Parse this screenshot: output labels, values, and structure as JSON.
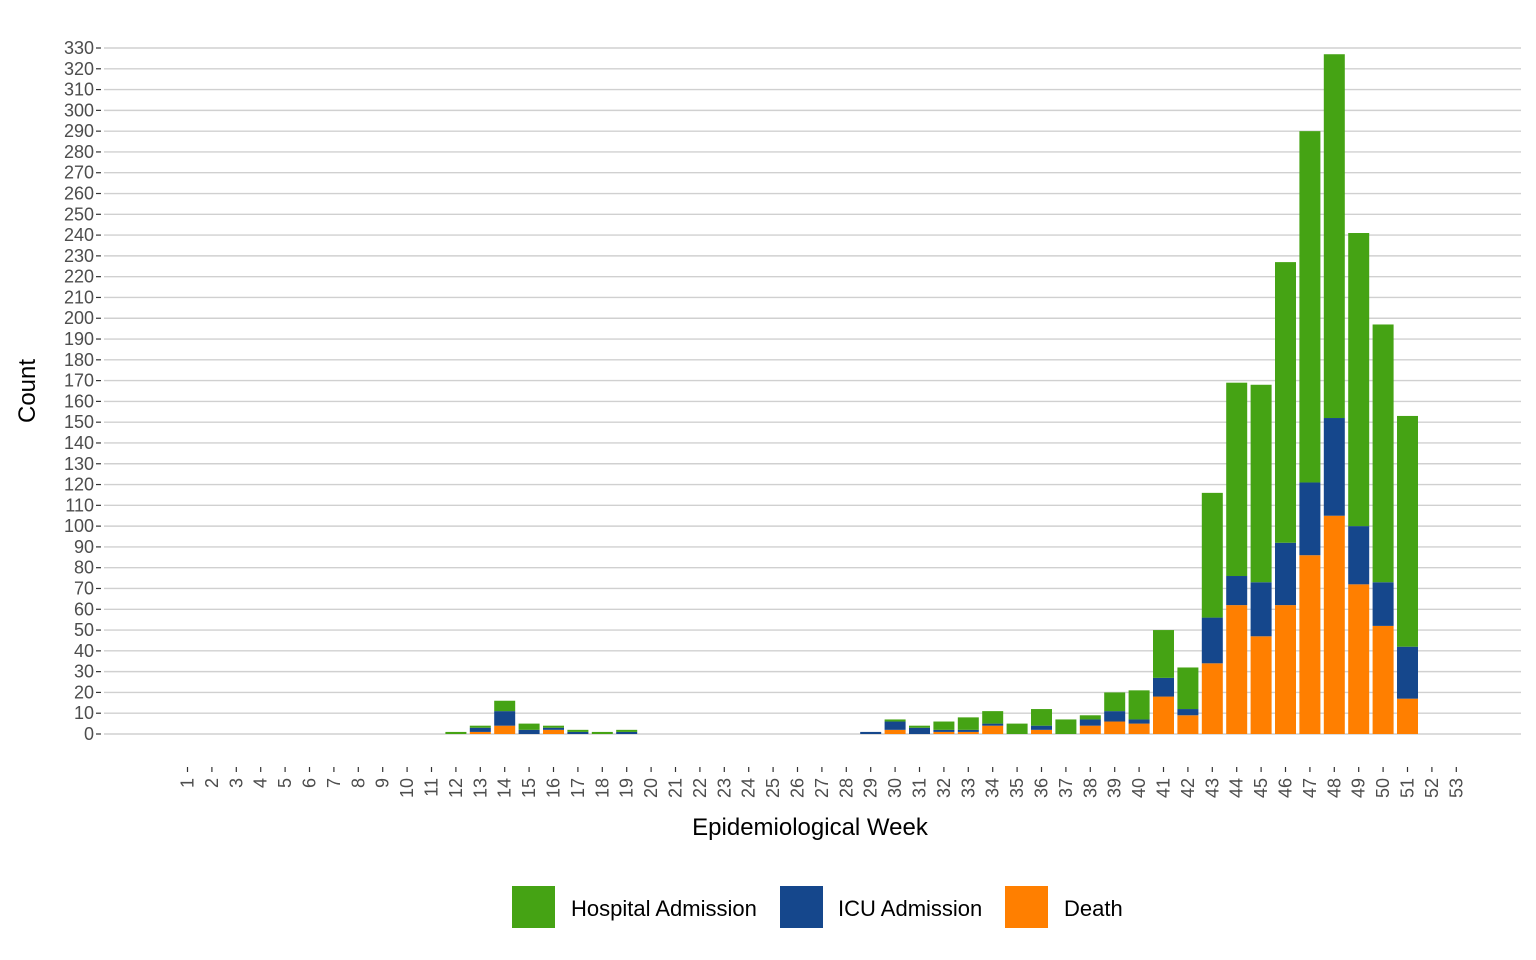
{
  "chart_data": {
    "type": "bar",
    "stacked": true,
    "xlabel": "Epidemiological Week",
    "ylabel": "Count",
    "ylim": [
      0,
      330
    ],
    "y_tick_step": 10,
    "grid": "horizontal",
    "legend_position": "bottom",
    "categories": [
      "1",
      "2",
      "3",
      "4",
      "5",
      "6",
      "7",
      "8",
      "9",
      "10",
      "11",
      "12",
      "13",
      "14",
      "15",
      "16",
      "17",
      "18",
      "19",
      "20",
      "21",
      "22",
      "23",
      "24",
      "25",
      "26",
      "27",
      "28",
      "29",
      "30",
      "31",
      "32",
      "33",
      "34",
      "35",
      "36",
      "37",
      "38",
      "39",
      "40",
      "41",
      "42",
      "43",
      "44",
      "45",
      "46",
      "47",
      "48",
      "49",
      "50",
      "51",
      "52",
      "53"
    ],
    "series": [
      {
        "name": "Death",
        "color": "#ff7f00",
        "values": [
          0,
          0,
          0,
          0,
          0,
          0,
          0,
          0,
          0,
          0,
          0,
          0,
          1,
          4,
          0,
          2,
          0,
          0,
          0,
          0,
          0,
          0,
          0,
          0,
          0,
          0,
          0,
          0,
          0,
          2,
          0,
          1,
          1,
          4,
          0,
          2,
          0,
          4,
          6,
          5,
          18,
          9,
          34,
          62,
          47,
          62,
          86,
          105,
          72,
          52,
          17,
          0,
          0
        ]
      },
      {
        "name": "ICU Admission",
        "color": "#15478c",
        "values": [
          0,
          0,
          0,
          0,
          0,
          0,
          0,
          0,
          0,
          0,
          0,
          0,
          2,
          7,
          2,
          1,
          1,
          0,
          1,
          0,
          0,
          0,
          0,
          0,
          0,
          0,
          0,
          0,
          1,
          4,
          3,
          1,
          1,
          1,
          0,
          2,
          0,
          3,
          5,
          2,
          9,
          3,
          22,
          14,
          26,
          30,
          35,
          47,
          28,
          21,
          25,
          0,
          0
        ]
      },
      {
        "name": "Hospital Admission",
        "color": "#45a314",
        "values": [
          0,
          0,
          0,
          0,
          0,
          0,
          0,
          0,
          0,
          0,
          0,
          1,
          1,
          5,
          3,
          1,
          1,
          1,
          1,
          0,
          0,
          0,
          0,
          0,
          0,
          0,
          0,
          0,
          0,
          1,
          1,
          4,
          6,
          6,
          5,
          8,
          7,
          2,
          9,
          14,
          23,
          20,
          60,
          93,
          95,
          135,
          169,
          175,
          141,
          124,
          111,
          0,
          0
        ]
      }
    ],
    "legend": [
      "Hospital Admission",
      "ICU Admission",
      "Death"
    ]
  }
}
